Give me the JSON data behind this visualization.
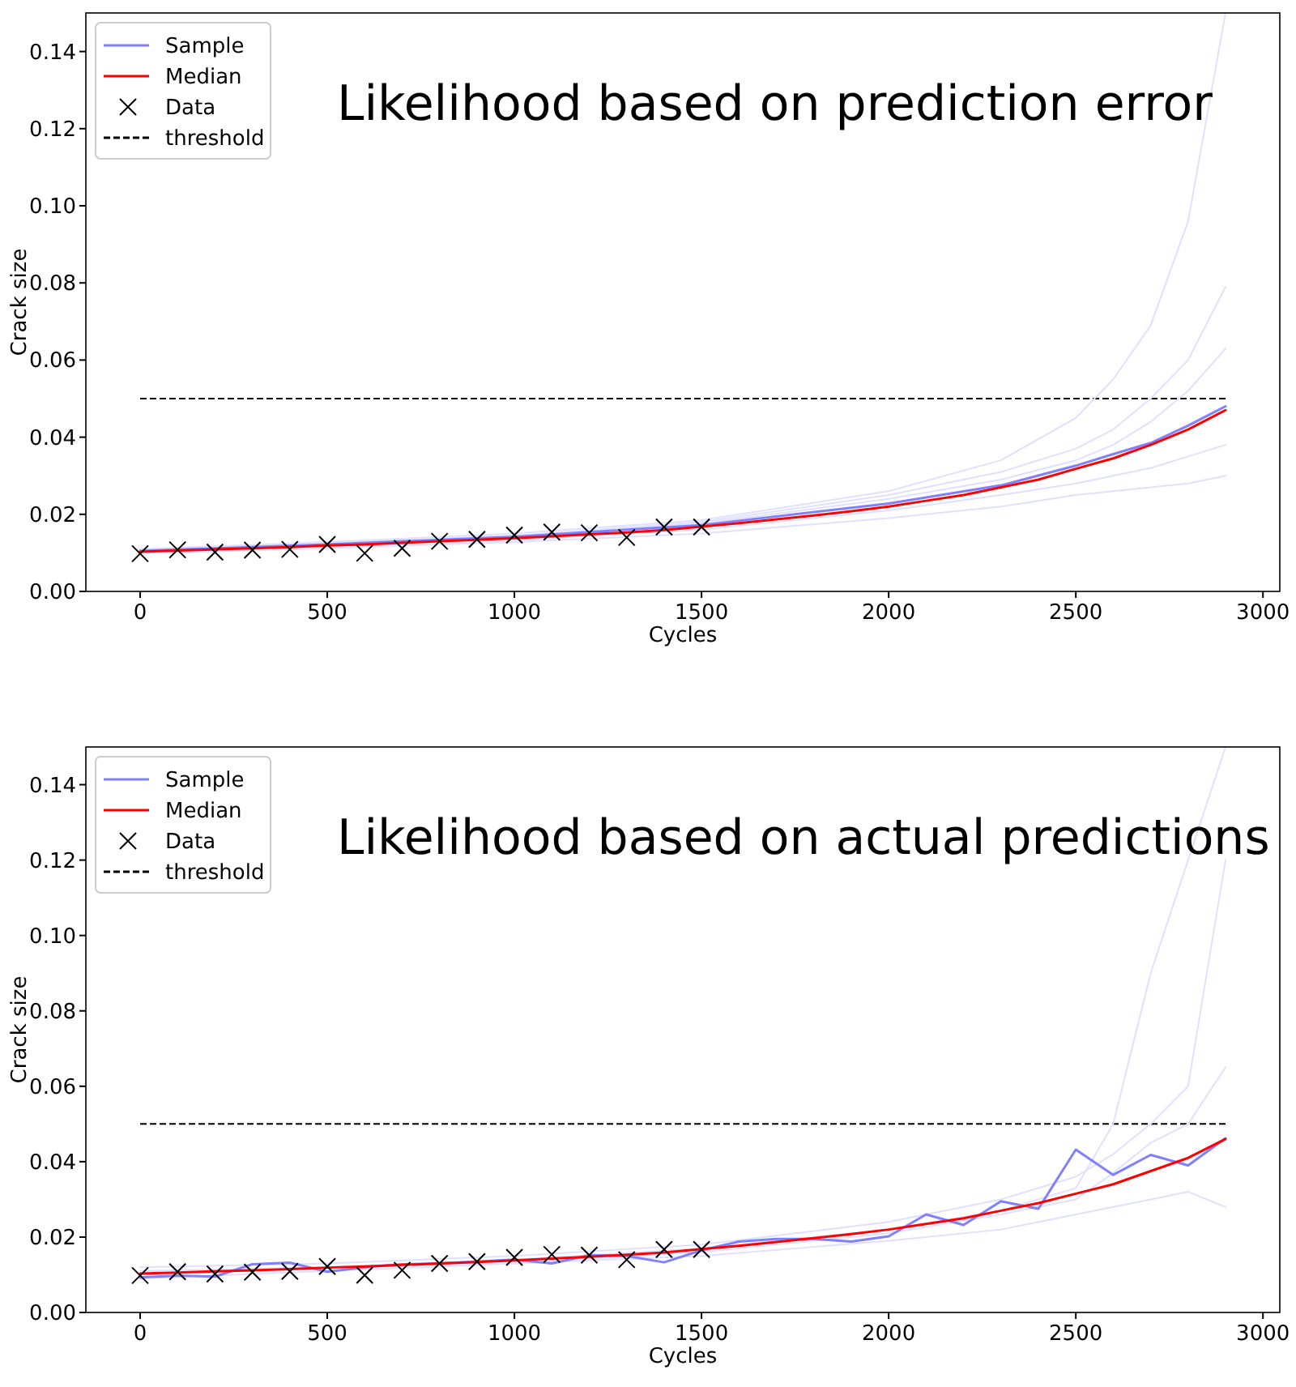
{
  "chart_data": [
    {
      "type": "line",
      "annotations": [
        "Likelihood based on prediction error"
      ],
      "xlabel": "Cycles",
      "ylabel": "Crack size",
      "xlim": [
        -145,
        3045
      ],
      "ylim": [
        0,
        0.15
      ],
      "xticks": [
        0,
        500,
        1000,
        1500,
        2000,
        2500,
        3000
      ],
      "yticks": [
        {
          "value": 0,
          "label": "0.00"
        },
        {
          "value": 0.02,
          "label": "0.02"
        },
        {
          "value": 0.04,
          "label": "0.04"
        },
        {
          "value": 0.06,
          "label": "0.06"
        },
        {
          "value": 0.08,
          "label": "0.08"
        },
        {
          "value": 0.1,
          "label": "0.10"
        },
        {
          "value": 0.12,
          "label": "0.12"
        },
        {
          "value": 0.14,
          "label": "0.14"
        }
      ],
      "legend": "top left",
      "grid": false,
      "line_style": "solid",
      "marker": "none",
      "ref_lines": [
        {
          "axis": "y",
          "value": 0.05,
          "label": "threshold",
          "color": "#000000",
          "line_style": "dashed"
        }
      ],
      "series": [
        {
          "color": "#e0e0ff",
          "x": [
            0,
            500,
            1000,
            1500,
            2000,
            2300,
            2500,
            2600,
            2700,
            2800,
            2900
          ],
          "values": [
            0.011,
            0.0128,
            0.015,
            0.0185,
            0.026,
            0.034,
            0.045,
            0.055,
            0.069,
            0.096,
            0.15
          ]
        },
        {
          "color": "#e0e0ff",
          "x": [
            0,
            500,
            1000,
            1500,
            2000,
            2300,
            2500,
            2600,
            2700,
            2800,
            2900
          ],
          "values": [
            0.0108,
            0.0125,
            0.0145,
            0.018,
            0.025,
            0.031,
            0.037,
            0.042,
            0.05,
            0.06,
            0.079
          ]
        },
        {
          "color": "#e0e0ff",
          "x": [
            0,
            500,
            1000,
            1500,
            2000,
            2300,
            2500,
            2600,
            2700,
            2800,
            2900
          ],
          "values": [
            0.0107,
            0.0124,
            0.0143,
            0.0176,
            0.024,
            0.029,
            0.034,
            0.038,
            0.044,
            0.052,
            0.063
          ]
        },
        {
          "color": "#e0e0ff",
          "x": [
            0,
            500,
            1000,
            1500,
            2000,
            2300,
            2500,
            2600,
            2700,
            2800,
            2900
          ],
          "values": [
            0.0098,
            0.0112,
            0.0128,
            0.015,
            0.019,
            0.022,
            0.025,
            0.026,
            0.027,
            0.028,
            0.03
          ]
        },
        {
          "color": "#e0e0ff",
          "x": [
            0,
            500,
            1000,
            1500,
            2000,
            2300,
            2500,
            2600,
            2700,
            2800,
            2900
          ],
          "values": [
            0.01,
            0.0115,
            0.0133,
            0.016,
            0.021,
            0.025,
            0.028,
            0.03,
            0.032,
            0.035,
            0.038
          ]
        },
        {
          "name": "Sample",
          "color": "#8080ff",
          "x": [
            0,
            500,
            1000,
            1500,
            2000,
            2300,
            2500,
            2600,
            2700,
            2800,
            2900
          ],
          "values": [
            0.0105,
            0.0122,
            0.0142,
            0.0172,
            0.0228,
            0.0275,
            0.0326,
            0.0356,
            0.0385,
            0.043,
            0.048
          ]
        },
        {
          "name": "Median",
          "color": "#ff0000",
          "x": [
            0,
            100,
            200,
            300,
            400,
            500,
            600,
            700,
            800,
            900,
            1000,
            1100,
            1200,
            1300,
            1400,
            1500,
            1600,
            1700,
            1800,
            1900,
            2000,
            2100,
            2200,
            2300,
            2400,
            2500,
            2600,
            2700,
            2800,
            2900
          ],
          "values": [
            0.0103,
            0.0106,
            0.0109,
            0.0112,
            0.0115,
            0.0119,
            0.0122,
            0.0126,
            0.013,
            0.0134,
            0.0138,
            0.0143,
            0.0148,
            0.0153,
            0.0159,
            0.0168,
            0.0177,
            0.0187,
            0.0197,
            0.0208,
            0.022,
            0.0235,
            0.025,
            0.027,
            0.029,
            0.0318,
            0.0345,
            0.038,
            0.042,
            0.047
          ]
        },
        {
          "name": "Data",
          "type": "scatter",
          "marker": "cross",
          "color": "#000000",
          "x": [
            0,
            100,
            200,
            300,
            400,
            500,
            600,
            700,
            800,
            900,
            1000,
            1100,
            1200,
            1300,
            1400,
            1500
          ],
          "values": [
            0.0098,
            0.0108,
            0.0102,
            0.0107,
            0.0109,
            0.0122,
            0.0099,
            0.0112,
            0.013,
            0.0135,
            0.0146,
            0.0154,
            0.0152,
            0.014,
            0.0167,
            0.0167
          ]
        }
      ]
    },
    {
      "type": "line",
      "annotations": [
        "Likelihood based on actual predictions"
      ],
      "xlabel": "Cycles",
      "ylabel": "Crack size",
      "xlim": [
        -145,
        3045
      ],
      "ylim": [
        0,
        0.15
      ],
      "xticks": [
        0,
        500,
        1000,
        1500,
        2000,
        2500,
        3000
      ],
      "yticks": [
        {
          "value": 0,
          "label": "0.00"
        },
        {
          "value": 0.02,
          "label": "0.02"
        },
        {
          "value": 0.04,
          "label": "0.04"
        },
        {
          "value": 0.06,
          "label": "0.06"
        },
        {
          "value": 0.08,
          "label": "0.08"
        },
        {
          "value": 0.1,
          "label": "0.10"
        },
        {
          "value": 0.12,
          "label": "0.12"
        },
        {
          "value": 0.14,
          "label": "0.14"
        }
      ],
      "legend": "top left",
      "grid": false,
      "line_style": "solid",
      "marker": "none",
      "ref_lines": [
        {
          "axis": "y",
          "value": 0.05,
          "label": "threshold",
          "color": "#000000",
          "line_style": "dashed"
        }
      ],
      "series": [
        {
          "color": "#e0e0ff",
          "x": [
            0,
            500,
            1000,
            1500,
            2000,
            2300,
            2500,
            2600,
            2700,
            2800,
            2900
          ],
          "values": [
            0.011,
            0.012,
            0.014,
            0.017,
            0.022,
            0.027,
            0.033,
            0.05,
            0.09,
            0.12,
            0.15
          ]
        },
        {
          "color": "#e0e0ff",
          "x": [
            0,
            500,
            1000,
            1500,
            2000,
            2300,
            2500,
            2600,
            2700,
            2800,
            2900
          ],
          "values": [
            0.01,
            0.012,
            0.013,
            0.016,
            0.021,
            0.026,
            0.03,
            0.037,
            0.045,
            0.05,
            0.065
          ]
        },
        {
          "color": "#e0e0ff",
          "x": [
            0,
            500,
            1000,
            1500,
            2000,
            2300,
            2500,
            2600,
            2700,
            2800,
            2900
          ],
          "values": [
            0.009,
            0.011,
            0.013,
            0.015,
            0.019,
            0.022,
            0.026,
            0.028,
            0.03,
            0.032,
            0.028
          ]
        },
        {
          "color": "#e0e0ff",
          "x": [
            0,
            500,
            1000,
            1500,
            2000,
            2300,
            2500,
            2600,
            2700,
            2800,
            2900
          ],
          "values": [
            0.012,
            0.013,
            0.015,
            0.018,
            0.024,
            0.03,
            0.036,
            0.042,
            0.05,
            0.06,
            0.12
          ]
        },
        {
          "name": "Sample",
          "color": "#8080ff",
          "x": [
            0,
            100,
            200,
            300,
            400,
            500,
            600,
            700,
            800,
            900,
            1000,
            1100,
            1200,
            1300,
            1400,
            1500,
            1600,
            1700,
            1800,
            1900,
            2000,
            2100,
            2200,
            2300,
            2400,
            2500,
            2600,
            2700,
            2800,
            2900
          ],
          "values": [
            0.0093,
            0.0098,
            0.0095,
            0.0128,
            0.0132,
            0.0108,
            0.012,
            0.0128,
            0.013,
            0.0135,
            0.014,
            0.013,
            0.0152,
            0.015,
            0.0133,
            0.0165,
            0.0188,
            0.0195,
            0.0195,
            0.0188,
            0.0202,
            0.026,
            0.0232,
            0.0295,
            0.0275,
            0.0432,
            0.0365,
            0.0418,
            0.039,
            0.0462
          ]
        },
        {
          "name": "Median",
          "color": "#ff0000",
          "x": [
            0,
            100,
            200,
            300,
            400,
            500,
            600,
            700,
            800,
            900,
            1000,
            1100,
            1200,
            1300,
            1400,
            1500,
            1600,
            1700,
            1800,
            1900,
            2000,
            2100,
            2200,
            2300,
            2400,
            2500,
            2600,
            2700,
            2800,
            2900
          ],
          "values": [
            0.0103,
            0.0106,
            0.0109,
            0.0112,
            0.0115,
            0.0119,
            0.0122,
            0.0126,
            0.013,
            0.0134,
            0.0138,
            0.0143,
            0.0148,
            0.0153,
            0.0159,
            0.0168,
            0.0177,
            0.0187,
            0.0197,
            0.0208,
            0.022,
            0.0235,
            0.025,
            0.027,
            0.029,
            0.0315,
            0.034,
            0.0375,
            0.041,
            0.046
          ]
        },
        {
          "name": "Data",
          "type": "scatter",
          "marker": "cross",
          "color": "#000000",
          "x": [
            0,
            100,
            200,
            300,
            400,
            500,
            600,
            700,
            800,
            900,
            1000,
            1100,
            1200,
            1300,
            1400,
            1500
          ],
          "values": [
            0.0098,
            0.0108,
            0.0102,
            0.0107,
            0.0109,
            0.0122,
            0.0099,
            0.0112,
            0.013,
            0.0135,
            0.0146,
            0.0154,
            0.0152,
            0.014,
            0.0167,
            0.0167
          ]
        }
      ]
    }
  ]
}
